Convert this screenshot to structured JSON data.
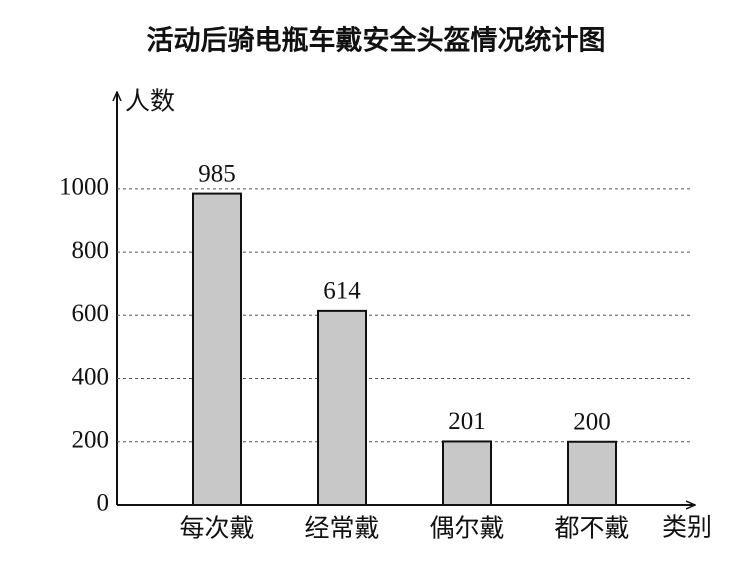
{
  "chart_data": {
    "type": "bar",
    "title": "活动后骑电瓶车戴安全头盔情况统计图",
    "y_label": "人数",
    "x_label": "类别",
    "categories": [
      "每次戴",
      "经常戴",
      "偶尔戴",
      "都不戴"
    ],
    "values": [
      985,
      614,
      201,
      200
    ],
    "color": "#c8c8c8",
    "ylim": [
      0,
      1300
    ],
    "yticks": [
      0,
      200,
      400,
      600,
      800,
      1000
    ],
    "grid": true
  }
}
